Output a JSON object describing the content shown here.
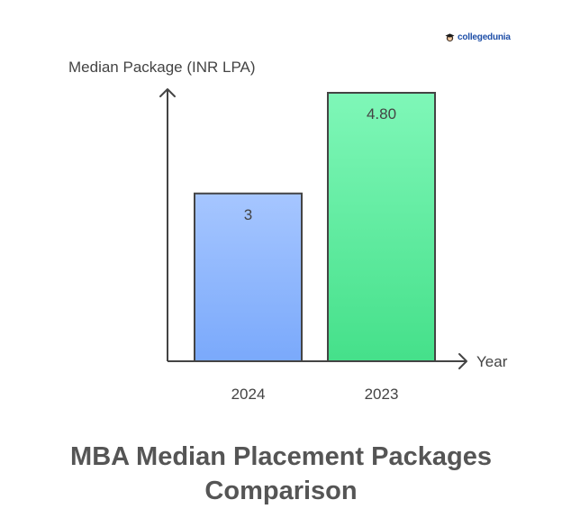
{
  "brand": {
    "name": "collegedunia"
  },
  "chart_data": {
    "type": "bar",
    "title": "MBA Median Placement Packages Comparison",
    "xlabel": "Year",
    "ylabel": "Median Package (INR LPA)",
    "categories": [
      "2024",
      "2023"
    ],
    "values": [
      3,
      4.8
    ],
    "data_labels": [
      "3",
      "4.80"
    ],
    "ylim": [
      0,
      4.8
    ],
    "grid": false,
    "legend": "none",
    "colors": {
      "bars": [
        {
          "top": "#a6c6ff",
          "bottom": "#7aa9fb"
        },
        {
          "top": "#7ff7b8",
          "bottom": "#45e08a"
        }
      ],
      "outline": "#444444",
      "axis": "#444444",
      "text": "#444444"
    }
  }
}
